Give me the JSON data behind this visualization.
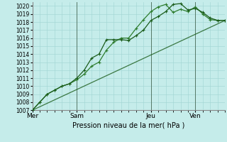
{
  "xlabel": "Pression niveau de la mer( hPa )",
  "ylim": [
    1007,
    1020.5
  ],
  "yticks": [
    1007,
    1008,
    1009,
    1010,
    1011,
    1012,
    1013,
    1014,
    1015,
    1016,
    1017,
    1018,
    1019,
    1020
  ],
  "background_color": "#c5ecea",
  "grid_color": "#9fd4d2",
  "line_color_dark": "#1a5c1a",
  "line_color_med": "#2e7d2e",
  "xtick_labels": [
    "Mer",
    "Sam",
    "Jeu",
    "Ven"
  ],
  "xtick_positions": [
    0,
    3,
    8,
    11
  ],
  "xlim": [
    0,
    13
  ],
  "series1_x": [
    0,
    0.5,
    1,
    1.5,
    2,
    2.5,
    3,
    3.5,
    4,
    4.5,
    5,
    5.5,
    6,
    6.5,
    7,
    7.5,
    8,
    8.5,
    9,
    9.5,
    10,
    10.5,
    11,
    11.5,
    12,
    12.5,
    13
  ],
  "series1_y": [
    1007,
    1008,
    1009,
    1009.5,
    1010,
    1010.3,
    1011,
    1012,
    1013.5,
    1014,
    1015.8,
    1015.8,
    1015.8,
    1015.7,
    1016.3,
    1017,
    1018.2,
    1018.7,
    1019.3,
    1020.2,
    1020.3,
    1019.5,
    1019.7,
    1019.2,
    1018.5,
    1018.2,
    1018.2
  ],
  "series2_x": [
    0,
    0.5,
    1,
    1.5,
    2,
    2.5,
    3,
    3.5,
    4,
    4.5,
    5,
    5.5,
    6,
    6.5,
    7,
    7.5,
    8,
    8.5,
    9,
    9.5,
    10,
    10.5,
    11,
    11.5,
    12,
    12.5,
    13
  ],
  "series2_y": [
    1007,
    1008,
    1009,
    1009.5,
    1010,
    1010.3,
    1010.8,
    1011.5,
    1012.5,
    1013,
    1014.5,
    1015.5,
    1016.0,
    1016.0,
    1017.2,
    1018.3,
    1019.3,
    1019.9,
    1020.2,
    1019.2,
    1019.6,
    1019.3,
    1019.9,
    1019.0,
    1018.3,
    1018.2,
    1018.2
  ],
  "series3_x": [
    0,
    13
  ],
  "series3_y": [
    1007,
    1018.2
  ],
  "vline_positions": [
    3,
    8,
    11
  ]
}
